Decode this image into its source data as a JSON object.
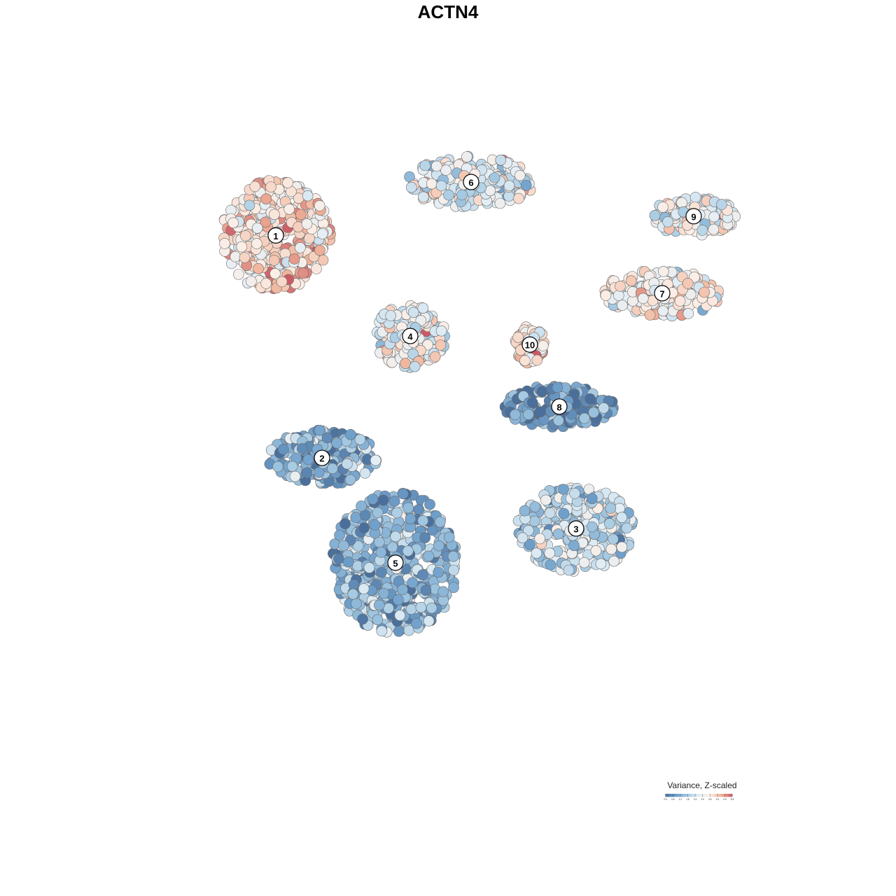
{
  "chart_data": {
    "type": "scatter",
    "title": "ACTN4",
    "color_scale": {
      "title": "Variance, Z-scaled",
      "min": 0.0,
      "max": 5.5,
      "ticks": [
        "0.0",
        "0.6",
        "1.2",
        "1.8",
        "2.4",
        "3.0",
        "3.6",
        "4.3",
        "4.9",
        "5.5"
      ],
      "colors": [
        "#4a6f9c",
        "#6fa0cc",
        "#a7cbe3",
        "#e3eef5",
        "#fbeee6",
        "#f0b49a",
        "#cc5a65"
      ]
    },
    "clusters": [
      {
        "label": "1",
        "x": -8.2,
        "y": 8.3,
        "mean": 3.9,
        "spread_x": 2.6,
        "spread_y": 2.6
      },
      {
        "label": "2",
        "x": -6.0,
        "y": -2.1,
        "mean": 1.3,
        "spread_x": 2.6,
        "spread_y": 1.3
      },
      {
        "label": "3",
        "x": 6.1,
        "y": -5.4,
        "mean": 2.2,
        "spread_x": 2.8,
        "spread_y": 2.0
      },
      {
        "label": "4",
        "x": -1.8,
        "y": 3.6,
        "mean": 3.2,
        "spread_x": 1.7,
        "spread_y": 1.5
      },
      {
        "label": "5",
        "x": -2.5,
        "y": -7.0,
        "mean": 1.4,
        "spread_x": 3.0,
        "spread_y": 3.3
      },
      {
        "label": "6",
        "x": 1.1,
        "y": 10.8,
        "mean": 2.9,
        "spread_x": 3.0,
        "spread_y": 1.2
      },
      {
        "label": "7",
        "x": 10.2,
        "y": 5.6,
        "mean": 3.4,
        "spread_x": 2.8,
        "spread_y": 1.1
      },
      {
        "label": "8",
        "x": 5.3,
        "y": 0.3,
        "mean": 0.8,
        "spread_x": 2.6,
        "spread_y": 1.0
      },
      {
        "label": "9",
        "x": 11.7,
        "y": 9.2,
        "mean": 3.1,
        "spread_x": 2.0,
        "spread_y": 0.9
      },
      {
        "label": "10",
        "x": 3.9,
        "y": 3.2,
        "mean": 3.7,
        "spread_x": 0.7,
        "spread_y": 0.9
      }
    ],
    "xlim": [
      -18,
      18
    ],
    "ylim": [
      -18,
      18
    ],
    "axes_visible": false,
    "grid": false,
    "legend_position": "bottom-right"
  }
}
